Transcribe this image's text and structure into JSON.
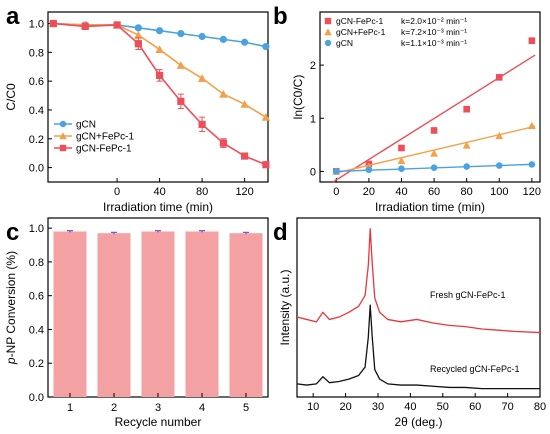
{
  "chart_data": [
    {
      "panel": "a",
      "type": "line",
      "xlabel": "Irradiation time (min)",
      "ylabel": "C/C0",
      "xlim": [
        -65,
        142
      ],
      "ylim": [
        -0.1,
        1.08
      ],
      "xticks": [
        0,
        40,
        80,
        120
      ],
      "yticks": [
        0.0,
        0.2,
        0.4,
        0.6,
        0.8,
        1.0
      ],
      "xtick_labels": [
        "0",
        "40",
        "80",
        "120"
      ],
      "ytick_labels": [
        "0.0",
        "0.2",
        "0.4",
        "0.6",
        "0.8",
        "1.0"
      ],
      "legend_position": "lower-left",
      "series": [
        {
          "name": "gCN",
          "color": "#4aa3e0",
          "marker": "circle",
          "x": [
            -60,
            -30,
            0,
            20,
            40,
            60,
            80,
            100,
            120,
            140
          ],
          "y": [
            1.0,
            0.99,
            0.99,
            0.97,
            0.95,
            0.93,
            0.91,
            0.89,
            0.87,
            0.84
          ]
        },
        {
          "name": "gCN+FePc-1",
          "color": "#f4a04a",
          "marker": "triangle",
          "x": [
            -60,
            -30,
            0,
            20,
            40,
            60,
            80,
            100,
            120,
            140
          ],
          "y": [
            1.0,
            0.99,
            0.99,
            0.92,
            0.82,
            0.71,
            0.62,
            0.51,
            0.44,
            0.35
          ]
        },
        {
          "name": "gCN-FePc-1",
          "color": "#ee4d5a",
          "marker": "square",
          "x": [
            -60,
            -30,
            0,
            20,
            40,
            60,
            80,
            100,
            120,
            140
          ],
          "y": [
            1.0,
            0.98,
            0.99,
            0.86,
            0.64,
            0.46,
            0.3,
            0.17,
            0.08,
            0.02
          ],
          "errors": [
            0,
            0.02,
            0.02,
            0.04,
            0.04,
            0.05,
            0.05,
            0.03,
            0,
            0
          ]
        }
      ]
    },
    {
      "panel": "b",
      "type": "scatter",
      "xlabel": "Irradiation time (min)",
      "ylabel": "ln(C0/C)",
      "xlim": [
        -10,
        125
      ],
      "ylim": [
        -0.2,
        3.0
      ],
      "xticks": [
        0,
        20,
        40,
        60,
        80,
        100,
        120
      ],
      "yticks": [
        0,
        1,
        2
      ],
      "xtick_labels": [
        "0",
        "20",
        "40",
        "60",
        "80",
        "100",
        "120"
      ],
      "ytick_labels": [
        "0",
        "1",
        "2"
      ],
      "legend_position": "top-left",
      "series": [
        {
          "name": "gCN-FePc-1",
          "k_label": "k=2.0×10⁻² min⁻¹",
          "color": "#ee4d5a",
          "marker": "square",
          "x": [
            0,
            20,
            40,
            60,
            80,
            100,
            120
          ],
          "y": [
            0,
            0.14,
            0.44,
            0.77,
            1.17,
            1.77,
            2.46
          ],
          "fit": {
            "slope": 0.02,
            "intercept": -0.25
          }
        },
        {
          "name": "gCN+FePc-1",
          "k_label": "k=7.2×10⁻³ min⁻¹",
          "color": "#f4a04a",
          "marker": "triangle",
          "x": [
            0,
            20,
            40,
            60,
            80,
            100,
            120
          ],
          "y": [
            0,
            0.09,
            0.2,
            0.34,
            0.49,
            0.67,
            0.86
          ],
          "fit": {
            "slope": 0.0072,
            "intercept": -0.03
          }
        },
        {
          "name": "gCN",
          "k_label": "k=1.1×10⁻³ min⁻¹",
          "color": "#4aa3e0",
          "marker": "circle",
          "x": [
            0,
            20,
            40,
            60,
            80,
            100,
            120
          ],
          "y": [
            0,
            0.03,
            0.05,
            0.07,
            0.09,
            0.11,
            0.13
          ],
          "fit": {
            "slope": 0.0011,
            "intercept": 0.0
          }
        }
      ]
    },
    {
      "panel": "c",
      "type": "bar",
      "xlabel": "Recycle number",
      "ylabel": "p-NP Conversion (%)",
      "categories": [
        "1",
        "2",
        "3",
        "4",
        "5"
      ],
      "values": [
        0.98,
        0.97,
        0.98,
        0.98,
        0.97
      ],
      "errors": [
        0.005,
        0.005,
        0.005,
        0.005,
        0.005
      ],
      "ylim": [
        0,
        1.06
      ],
      "yticks": [
        0.0,
        0.2,
        0.4,
        0.6,
        0.8,
        1.0
      ],
      "ytick_labels": [
        "0.0",
        "0.2",
        "0.4",
        "0.6",
        "0.8",
        "1.0"
      ],
      "bar_color": "#f4a1a3",
      "error_color": "#7a4fd6"
    },
    {
      "panel": "d",
      "type": "line",
      "xlabel": "2θ (deg.)",
      "ylabel": "Intensity (a.u.)",
      "xlim": [
        5,
        80
      ],
      "xticks": [
        10,
        20,
        30,
        40,
        50,
        60,
        70,
        80
      ],
      "xtick_labels": [
        "10",
        "20",
        "30",
        "40",
        "50",
        "60",
        "70",
        "80"
      ],
      "y_ticks_shown": false,
      "series": [
        {
          "name": "Fresh gCN-FePc-1",
          "label": "Fresh gCN-FePc-1",
          "color": "#e8363b",
          "x": [
            5,
            8,
            11,
            13,
            15,
            18,
            21,
            24,
            26,
            27,
            27.6,
            28.2,
            29,
            30.5,
            33,
            37,
            42,
            47,
            52,
            57,
            62,
            67,
            72,
            80
          ],
          "y": [
            0.62,
            0.6,
            0.58,
            0.66,
            0.6,
            0.62,
            0.66,
            0.71,
            0.8,
            1.05,
            1.36,
            1.08,
            0.78,
            0.66,
            0.6,
            0.58,
            0.6,
            0.57,
            0.55,
            0.54,
            0.52,
            0.51,
            0.5,
            0.49
          ]
        },
        {
          "name": "Recycled gCN-FePc-1",
          "label": "Recycled gCN-FePc-1",
          "color": "#111111",
          "x": [
            5,
            8,
            11,
            13,
            15,
            18,
            21,
            24,
            26,
            27,
            27.6,
            28.2,
            29,
            30.5,
            33,
            37,
            42,
            47,
            52,
            57,
            62,
            67,
            72,
            80
          ],
          "y": [
            0.06,
            0.05,
            0.06,
            0.12,
            0.07,
            0.08,
            0.1,
            0.13,
            0.2,
            0.45,
            0.72,
            0.46,
            0.18,
            0.1,
            0.06,
            0.05,
            0.05,
            0.04,
            0.03,
            0.03,
            0.02,
            0.02,
            0.02,
            0.02
          ]
        }
      ]
    }
  ]
}
